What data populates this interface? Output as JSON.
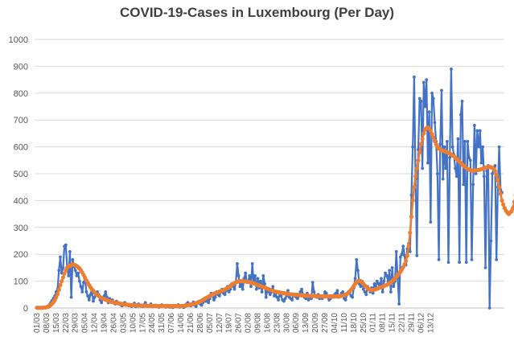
{
  "chart_data": {
    "type": "line",
    "title": "COVID-19-Cases in Luxembourg (Per Day)",
    "xlabel": "",
    "ylabel": "",
    "ylim": [
      0,
      1000
    ],
    "yticks": [
      0,
      100,
      200,
      300,
      400,
      500,
      600,
      700,
      800,
      900,
      1000
    ],
    "grid": true,
    "legend": "none",
    "x_tick_labels": [
      "01/03",
      "08/03",
      "15/03",
      "22/03",
      "29/03",
      "05/04",
      "12/04",
      "19/04",
      "26/04",
      "03/05",
      "10/05",
      "17/05",
      "24/05",
      "31/05",
      "07/06",
      "14/06",
      "21/06",
      "28/06",
      "05/07",
      "12/07",
      "19/07",
      "26/07",
      "02/08",
      "09/08",
      "16/08",
      "23/08",
      "30/08",
      "06/09",
      "13/09",
      "20/09",
      "27/09",
      "04/10",
      "11/10",
      "18/10",
      "25/10",
      "01/11",
      "08/11",
      "15/11",
      "22/11",
      "29/11",
      "06/12",
      "13/12"
    ],
    "series": [
      {
        "color": "#4472C4",
        "marker": "circle",
        "values": [
          2,
          0,
          0,
          0,
          2,
          3,
          2,
          3,
          7,
          12,
          20,
          28,
          36,
          45,
          60,
          70,
          140,
          190,
          130,
          150,
          230,
          235,
          150,
          120,
          210,
          40,
          180,
          155,
          140,
          120,
          130,
          100,
          80,
          60,
          95,
          110,
          60,
          45,
          30,
          50,
          70,
          25,
          40,
          55,
          60,
          50,
          30,
          20,
          35,
          45,
          60,
          40,
          20,
          35,
          25,
          30,
          20,
          15,
          25,
          20,
          15,
          12,
          8,
          15,
          20,
          10,
          12,
          8,
          10,
          6,
          12,
          18,
          5,
          8,
          15,
          10,
          8,
          5,
          12,
          20,
          10,
          6,
          8,
          15,
          5,
          8,
          10,
          6,
          5,
          3,
          8,
          12,
          6,
          5,
          3,
          10,
          5,
          3,
          6,
          2,
          4,
          8,
          5,
          12,
          3,
          5,
          8,
          2,
          6,
          15,
          20,
          10,
          8,
          14,
          22,
          10,
          6,
          18,
          25,
          15,
          10,
          20,
          30,
          25,
          40,
          20,
          35,
          55,
          45,
          30,
          40,
          60,
          50,
          45,
          60,
          70,
          55,
          50,
          65,
          80,
          60,
          70,
          90,
          80,
          70,
          95,
          165,
          120,
          80,
          90,
          70,
          110,
          130,
          95,
          100,
          120,
          80,
          165,
          90,
          120,
          70,
          110,
          75,
          100,
          60,
          120,
          90,
          40,
          70,
          60,
          50,
          60,
          80,
          45,
          50,
          40,
          30,
          55,
          45,
          30,
          25,
          35,
          45,
          65,
          40,
          35,
          30,
          50,
          45,
          40,
          35,
          45,
          60,
          70,
          50,
          40,
          35,
          55,
          30,
          45,
          35,
          95,
          60,
          45,
          40,
          50,
          35,
          40,
          35,
          45,
          60,
          55,
          40,
          30,
          35,
          45,
          40,
          50,
          55,
          65,
          40,
          45,
          55,
          60,
          35,
          30,
          50,
          60,
          55,
          45,
          40,
          75,
          110,
          180,
          140,
          90,
          80,
          100,
          70,
          60,
          50,
          80,
          70,
          60,
          75,
          55,
          90,
          80,
          100,
          90,
          75,
          110,
          60,
          100,
          130,
          120,
          100,
          140,
          60,
          150,
          80,
          100,
          210,
          110,
          15,
          190,
          200,
          230,
          195,
          160,
          220,
          240,
          210,
          420,
          600,
          860,
          480,
          195,
          590,
          780,
          770,
          520,
          840,
          750,
          850,
          540,
          730,
          320,
          800,
          780,
          690,
          620,
          500,
          180,
          610,
          810,
          480,
          600,
          520,
          620,
          170,
          560,
          890,
          600,
          570,
          520,
          490,
          630,
          170,
          720,
          770,
          460,
          620,
          170,
          620,
          560,
          550,
          180,
          460,
          680,
          500,
          660,
          600,
          660,
          540,
          600,
          490,
          150,
          510,
          530,
          0,
          250,
          500,
          520,
          530,
          180,
          450,
          600,
          440,
          430
        ]
      },
      {
        "color": "#ED7D31",
        "marker": "circle",
        "values": [
          1,
          1,
          1,
          1,
          1,
          2,
          2,
          3,
          4,
          7,
          11,
          16,
          22,
          30,
          40,
          52,
          68,
          86,
          100,
          114,
          128,
          140,
          150,
          155,
          158,
          160,
          162,
          161,
          159,
          156,
          152,
          147,
          140,
          132,
          123,
          113,
          103,
          94,
          85,
          77,
          70,
          64,
          58,
          53,
          49,
          45,
          41,
          38,
          35,
          33,
          31,
          29,
          27,
          25,
          23,
          22,
          21,
          20,
          19,
          18,
          17,
          16,
          15,
          14,
          13,
          13,
          12,
          12,
          11,
          11,
          10,
          10,
          10,
          10,
          9,
          9,
          9,
          9,
          9,
          9,
          8,
          8,
          8,
          8,
          8,
          8,
          8,
          8,
          7,
          7,
          7,
          7,
          7,
          7,
          7,
          7,
          7,
          7,
          7,
          7,
          7,
          7,
          7,
          7,
          7,
          7,
          8,
          8,
          9,
          10,
          11,
          12,
          13,
          14,
          15,
          17,
          18,
          20,
          22,
          24,
          27,
          30,
          33,
          36,
          39,
          42,
          45,
          48,
          50,
          53,
          55,
          57,
          59,
          61,
          63,
          65,
          67,
          69,
          72,
          75,
          78,
          82,
          86,
          90,
          93,
          96,
          98,
          99,
          100,
          100,
          100,
          99,
          99,
          98,
          97,
          96,
          95,
          94,
          92,
          90,
          88,
          86,
          84,
          82,
          80,
          78,
          76,
          74,
          72,
          70,
          68,
          66,
          64,
          62,
          61,
          60,
          59,
          58,
          57,
          56,
          55,
          54,
          53,
          52,
          52,
          51,
          51,
          50,
          50,
          49,
          49,
          48,
          48,
          47,
          47,
          46,
          46,
          46,
          45,
          45,
          45,
          45,
          45,
          44,
          44,
          44,
          44,
          44,
          43,
          43,
          43,
          43,
          43,
          43,
          43,
          43,
          43,
          43,
          43,
          43,
          44,
          44,
          45,
          46,
          48,
          50,
          53,
          57,
          62,
          68,
          74,
          82,
          90,
          96,
          100,
          102,
          100,
          96,
          90,
          84,
          78,
          73,
          70,
          68,
          67,
          67,
          68,
          70,
          72,
          74,
          76,
          78,
          80,
          82,
          84,
          86,
          89,
          92,
          96,
          100,
          105,
          110,
          116,
          122,
          128,
          135,
          143,
          152,
          162,
          175,
          195,
          230,
          280,
          340,
          400,
          450,
          490,
          520,
          550,
          580,
          610,
          630,
          650,
          665,
          670,
          672,
          668,
          660,
          648,
          635,
          622,
          610,
          600,
          594,
          590,
          588,
          586,
          584,
          582,
          580,
          578,
          575,
          572,
          568,
          565,
          560,
          555,
          550,
          545,
          540,
          535,
          530,
          526,
          522,
          518,
          515,
          513,
          512,
          512,
          512,
          512,
          513,
          514,
          515,
          517,
          519,
          521,
          523,
          524,
          525,
          525,
          524,
          522,
          518,
          510,
          495,
          475,
          450,
          425,
          400,
          385,
          372,
          362,
          355,
          350,
          356,
          360,
          372,
          395,
          420,
          435,
          440,
          438,
          436,
          435
        ]
      }
    ]
  }
}
